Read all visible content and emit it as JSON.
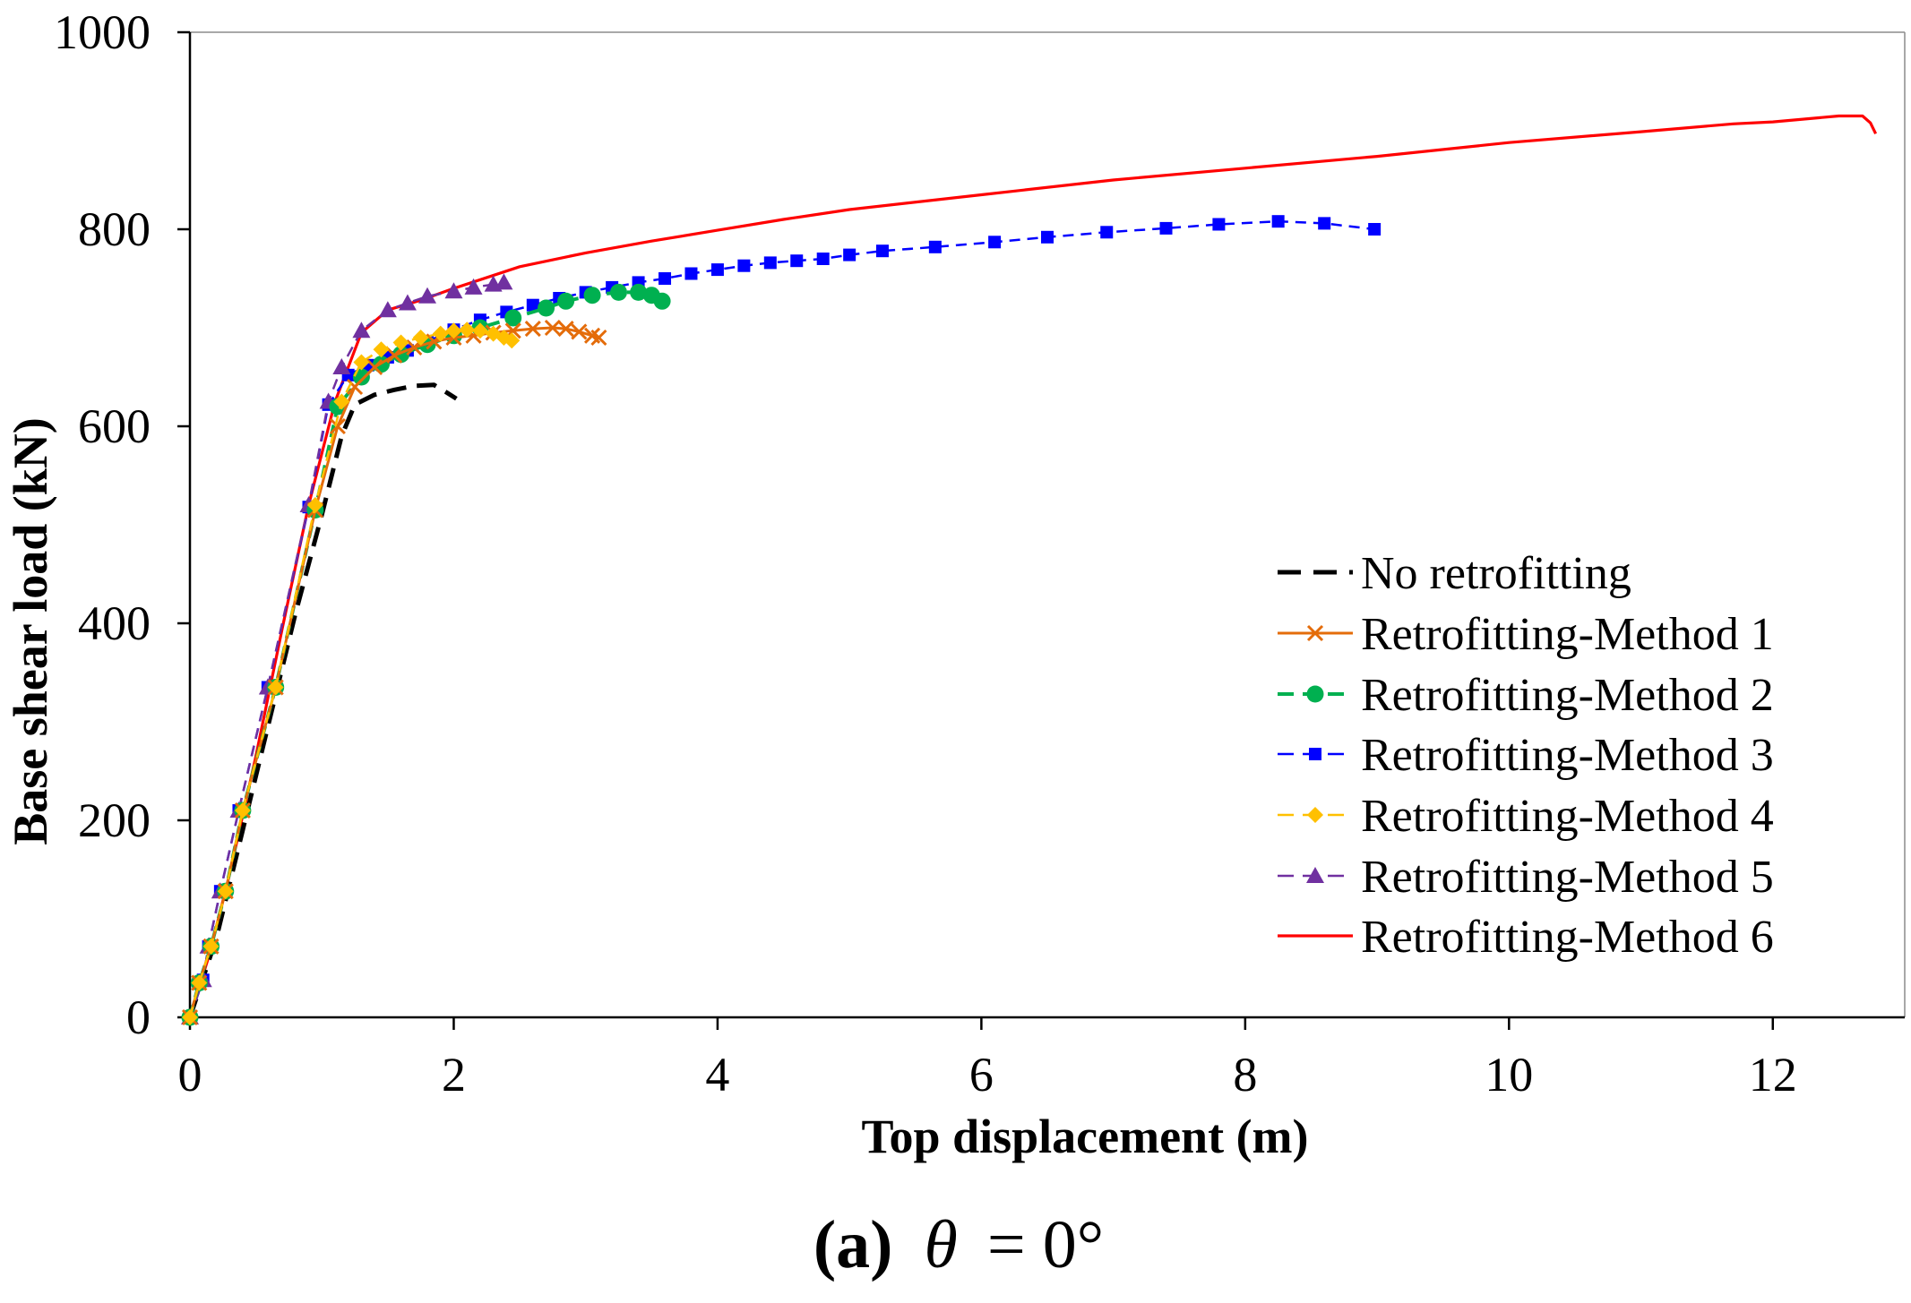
{
  "caption": {
    "label": "(a)",
    "symbol": "θ",
    "rest": "= 0°"
  },
  "chart_data": {
    "type": "line",
    "xlabel": "Top displacement (m)",
    "ylabel": "Base shear load (kN)",
    "xlim": [
      0,
      13
    ],
    "ylim": [
      0,
      1000
    ],
    "xticks": [
      0,
      2,
      4,
      6,
      8,
      10,
      12
    ],
    "yticks": [
      0,
      200,
      400,
      600,
      800,
      1000
    ],
    "grid": false,
    "legend": "bottom-right",
    "series": [
      {
        "name": "No retrofitting",
        "color": "#000000",
        "x": [
          0,
          0.2,
          0.4,
          0.6,
          0.8,
          1.0,
          1.15,
          1.25,
          1.4,
          1.55,
          1.7,
          1.85,
          1.95,
          2.02
        ],
        "y": [
          0,
          80,
          190,
          300,
          410,
          510,
          590,
          622,
          632,
          637,
          641,
          642,
          634,
          628
        ]
      },
      {
        "name": "Retrofitting-Method 1",
        "color": "#E46C0A",
        "x": [
          0,
          0.07,
          0.16,
          0.27,
          0.4,
          0.65,
          0.95,
          1.12,
          1.25,
          1.4,
          1.55,
          1.7,
          1.85,
          2.0,
          2.15,
          2.3,
          2.45,
          2.6,
          2.75,
          2.85,
          2.95,
          3.05,
          3.1
        ],
        "y": [
          0,
          35,
          72,
          128,
          210,
          335,
          515,
          600,
          640,
          660,
          672,
          680,
          686,
          690,
          692,
          695,
          697,
          699,
          700,
          699,
          696,
          692,
          690
        ]
      },
      {
        "name": "Retrofitting-Method 2",
        "color": "#00B050",
        "x": [
          0,
          0.07,
          0.16,
          0.27,
          0.4,
          0.65,
          0.95,
          1.12,
          1.3,
          1.45,
          1.6,
          1.8,
          2.0,
          2.2,
          2.45,
          2.7,
          2.85,
          3.05,
          3.25,
          3.4,
          3.5,
          3.58
        ],
        "y": [
          0,
          35,
          72,
          128,
          210,
          335,
          515,
          620,
          650,
          663,
          673,
          683,
          692,
          700,
          710,
          720,
          727,
          733,
          736,
          736,
          733,
          727
        ]
      },
      {
        "name": "Retrofitting-Method 3",
        "color": "#0000FF",
        "x": [
          0,
          0.1,
          0.14,
          0.23,
          0.37,
          0.59,
          0.9,
          1.05,
          1.2,
          1.35,
          1.5,
          1.65,
          1.8,
          2.0,
          2.2,
          2.4,
          2.6,
          2.8,
          3.0,
          3.2,
          3.4,
          3.6,
          3.8,
          4.0,
          4.2,
          4.4,
          4.6,
          4.8,
          5.0,
          5.25,
          5.65,
          6.1,
          6.5,
          6.95,
          7.4,
          7.8,
          8.25,
          8.6,
          8.98
        ],
        "y": [
          0,
          38,
          72,
          128,
          210,
          335,
          518,
          622,
          652,
          662,
          670,
          677,
          686,
          698,
          708,
          716,
          723,
          730,
          736,
          741,
          746,
          750,
          755,
          759,
          763,
          766,
          768,
          770,
          774,
          778,
          782,
          787,
          792,
          797,
          801,
          805,
          808,
          806,
          800
        ]
      },
      {
        "name": "Retrofitting-Method 4",
        "color": "#FFC000",
        "x": [
          0,
          0.07,
          0.16,
          0.27,
          0.4,
          0.65,
          0.95,
          1.15,
          1.3,
          1.45,
          1.6,
          1.75,
          1.9,
          2.0,
          2.1,
          2.2,
          2.3,
          2.38,
          2.44
        ],
        "y": [
          0,
          35,
          72,
          128,
          210,
          335,
          520,
          625,
          665,
          678,
          685,
          690,
          694,
          697,
          698,
          697,
          694,
          690,
          687
        ]
      },
      {
        "name": "Retrofitting-Method 5",
        "color": "#7030A0",
        "x": [
          0,
          0.1,
          0.14,
          0.23,
          0.37,
          0.59,
          0.9,
          1.05,
          1.15,
          1.3,
          1.5,
          1.65,
          1.8,
          2.0,
          2.15,
          2.3,
          2.38
        ],
        "y": [
          0,
          38,
          72,
          128,
          210,
          335,
          520,
          625,
          660,
          697,
          718,
          725,
          732,
          737,
          741,
          744,
          746
        ]
      },
      {
        "name": "Retrofitting-Method 6",
        "color": "#FF0000",
        "x": [
          0,
          0.15,
          0.3,
          0.5,
          0.7,
          0.9,
          1.1,
          1.3,
          1.5,
          1.75,
          2.0,
          2.5,
          3.0,
          3.5,
          4.0,
          4.5,
          5.0,
          6.0,
          7.0,
          8.0,
          9.0,
          10.0,
          11.0,
          11.7,
          12.0,
          12.5,
          12.68,
          12.74,
          12.78
        ],
        "y": [
          0,
          65,
          145,
          265,
          395,
          520,
          625,
          695,
          718,
          728,
          740,
          762,
          776,
          788,
          799,
          810,
          820,
          835,
          850,
          862,
          874,
          888,
          899,
          907,
          909,
          915,
          915,
          908,
          897
        ]
      }
    ]
  }
}
